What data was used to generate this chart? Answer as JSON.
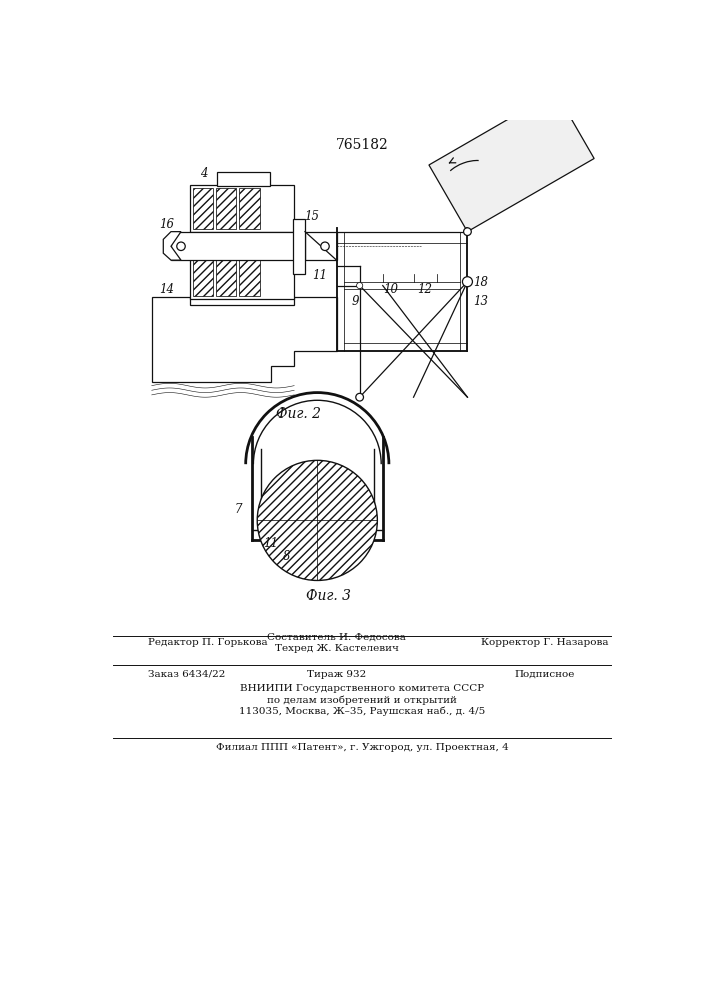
{
  "patent_number": "765182",
  "bg_color": "#ffffff",
  "line_color": "#111111",
  "fig2_label": "Фиг. 2",
  "fig3_label": "Фиг. 3",
  "footer_line1_left": "Редактор П. Горькова",
  "footer_line1_center_top": "Составитель И. Федосова",
  "footer_line1_center": "Техред Ж. Кастелевич",
  "footer_line1_right": "Корректор Г. Назарова",
  "footer_line2_left": "Заказ 6434/22",
  "footer_line2_center": "Тираж 932",
  "footer_line2_right": "Подписное",
  "footer_line3": "ВНИИПИ Государственного комитета СССР",
  "footer_line4": "по делам изобретений и открытий",
  "footer_line5": "113035, Москва, Ж–35, Раушская наб., д. 4/5",
  "footer_line6": "Филиал ППП «Патент», г. Ужгород, ул. Проектная, 4"
}
